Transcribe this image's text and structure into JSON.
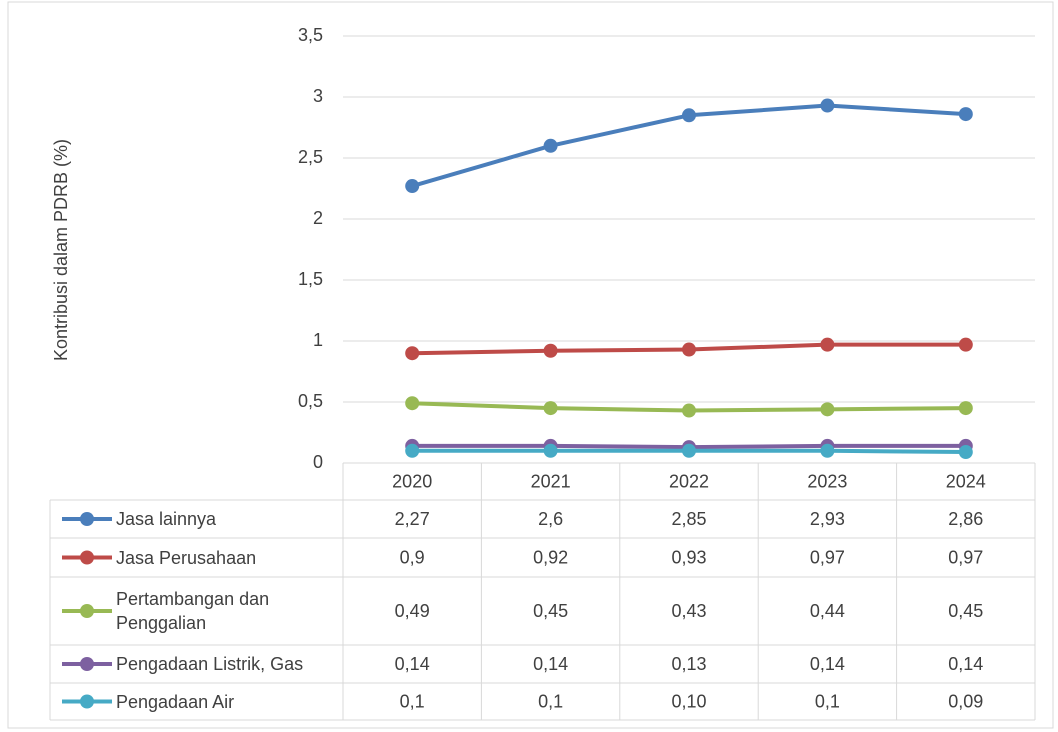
{
  "chart_data": {
    "type": "line",
    "y_label": "Kontribusi dalam PDRB (%)",
    "categories": [
      "2020",
      "2021",
      "2022",
      "2023",
      "2024"
    ],
    "ylim": [
      0,
      3.5
    ],
    "yticks": [
      0,
      {
        "value": 0.5,
        "label": "0,5"
      },
      1,
      {
        "value": 1.5,
        "label": "1,5"
      },
      2,
      {
        "value": 2.5,
        "label": "2,5"
      },
      3,
      {
        "value": 3.5,
        "label": "3,5"
      }
    ],
    "grid": true,
    "series": [
      {
        "name": "Jasa lainnya",
        "color": "#4a7ebb",
        "values": [
          2.27,
          2.6,
          2.85,
          2.93,
          2.86
        ],
        "value_labels": [
          "2,27",
          "2,6",
          "2,85",
          "2,93",
          "2,86"
        ]
      },
      {
        "name": "Jasa Perusahaan",
        "color": "#be4b48",
        "values": [
          0.9,
          0.92,
          0.93,
          0.97,
          0.97
        ],
        "value_labels": [
          "0,9",
          "0,92",
          "0,93",
          "0,97",
          "0,97"
        ]
      },
      {
        "name": "Pertambangan dan Penggalian",
        "color": "#98b954",
        "values": [
          0.49,
          0.45,
          0.43,
          0.44,
          0.45
        ],
        "value_labels": [
          "0,49",
          "0,45",
          "0,43",
          "0,44",
          "0,45"
        ]
      },
      {
        "name": "Pengadaan Listrik, Gas",
        "color": "#7d60a0",
        "values": [
          0.14,
          0.14,
          0.13,
          0.14,
          0.14
        ],
        "value_labels": [
          "0,14",
          "0,14",
          "0,13",
          "0,14",
          "0,14"
        ]
      },
      {
        "name": "Pengadaan Air",
        "color": "#46aac5",
        "values": [
          0.1,
          0.1,
          0.1,
          0.1,
          0.09
        ],
        "value_labels": [
          "0,1",
          "0,1",
          "0,10",
          "0,1",
          "0,09"
        ]
      }
    ]
  }
}
